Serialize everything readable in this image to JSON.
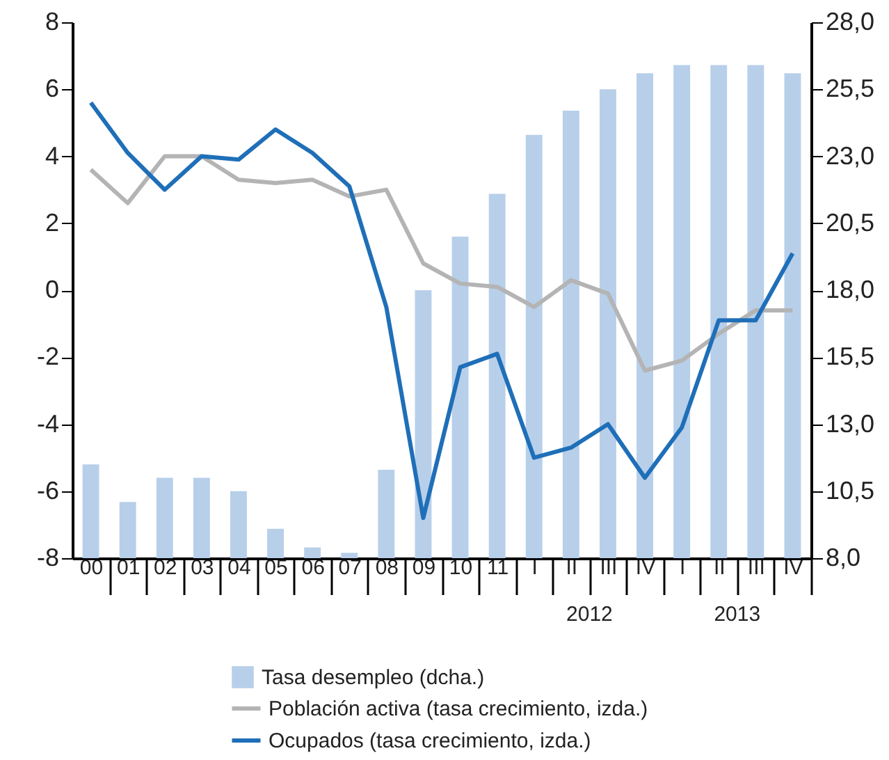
{
  "chart_data": {
    "type": "bar",
    "categories": [
      "00",
      "01",
      "02",
      "03",
      "04",
      "05",
      "06",
      "07",
      "08",
      "09",
      "10",
      "11",
      "I",
      "II",
      "III",
      "IV",
      "I",
      "II",
      "III",
      "IV"
    ],
    "series": [
      {
        "name": "Tasa desempleo (dcha.)",
        "axis": "y2",
        "color": "#b8cfea",
        "values": [
          11.5,
          10.1,
          11.0,
          11.0,
          10.5,
          9.1,
          8.4,
          8.2,
          11.3,
          18.0,
          20.0,
          21.6,
          23.8,
          24.7,
          25.5,
          26.1,
          26.4,
          26.4,
          26.4,
          26.1
        ]
      },
      {
        "name": "Población activa (tasa crecimiento, izda.)",
        "type": "line",
        "color": "#b4b4b4",
        "values": [
          3.6,
          2.6,
          4.0,
          4.0,
          3.3,
          3.2,
          3.3,
          2.8,
          3.0,
          0.8,
          0.2,
          0.1,
          -0.5,
          0.3,
          -0.1,
          -2.4,
          -2.1,
          -1.3,
          -0.6,
          -0.6
        ]
      },
      {
        "name": "Ocupados (tasa crecimiento, izda.)",
        "type": "line",
        "color": "#1f6fb8",
        "values": [
          5.6,
          4.1,
          3.0,
          4.0,
          3.9,
          4.8,
          4.1,
          3.1,
          -0.5,
          -6.8,
          -2.3,
          -1.9,
          -5.0,
          -4.7,
          -4.0,
          -5.6,
          -4.1,
          -0.9,
          -0.9,
          1.1
        ]
      }
    ],
    "ylim": [
      -8,
      8
    ],
    "yticks": [
      -8,
      -6,
      -4,
      -2,
      0,
      2,
      4,
      6,
      8
    ],
    "y2lim": [
      8,
      28
    ],
    "y2ticks": [
      {
        "value": 8,
        "label": "8,0"
      },
      {
        "value": 10.5,
        "label": "10,5"
      },
      {
        "value": 13,
        "label": "13,0"
      },
      {
        "value": 15.5,
        "label": "15,5"
      },
      {
        "value": 18,
        "label": "18,0"
      },
      {
        "value": 20.5,
        "label": "20,5"
      },
      {
        "value": 23,
        "label": "23,0"
      },
      {
        "value": 25.5,
        "label": "25,5"
      },
      {
        "value": 28,
        "label": "28,0"
      }
    ],
    "annotations": [
      "2012",
      "2013"
    ],
    "grid": false,
    "legend": "bottom"
  }
}
